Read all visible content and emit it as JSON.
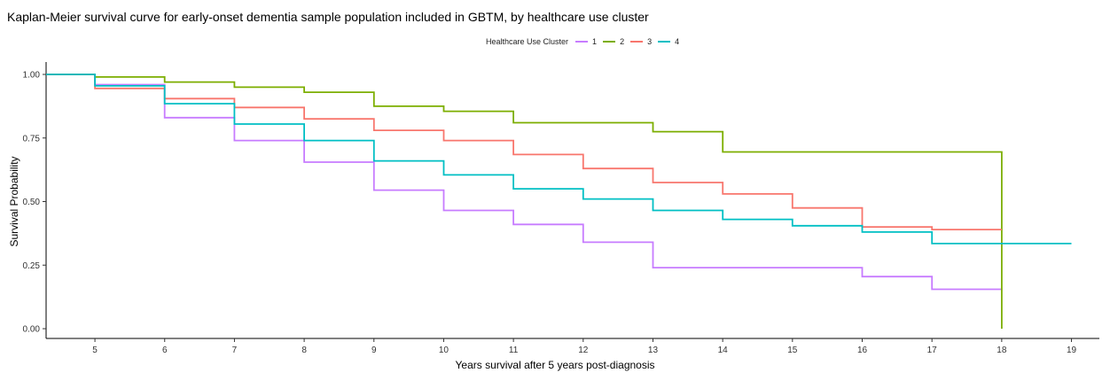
{
  "chart_data": {
    "type": "line",
    "step": true,
    "title": "Kaplan-Meier survival curve for early-onset dementia sample population included in GBTM, by healthcare use cluster",
    "xlabel": "Years survival after 5 years post-diagnosis",
    "ylabel": "Survival Probability",
    "xlim": [
      4.3,
      19.4
    ],
    "ylim": [
      0,
      1
    ],
    "xticks": [
      5,
      6,
      7,
      8,
      9,
      10,
      11,
      12,
      13,
      14,
      15,
      16,
      17,
      18,
      19
    ],
    "yticks": [
      0,
      0.25,
      0.5,
      0.75,
      1.0
    ],
    "ytick_labels": [
      "0.00",
      "0.25",
      "0.50",
      "0.75",
      "1.00"
    ],
    "grid": false,
    "legend": {
      "title": "Healthcare Use Cluster",
      "position": "top",
      "entries": [
        "1",
        "2",
        "3",
        "4"
      ]
    },
    "series": [
      {
        "name": "1",
        "color": "#C77CFF",
        "x": [
          4.3,
          5,
          6,
          7,
          8,
          9,
          10,
          11,
          12,
          13,
          16,
          17,
          18
        ],
        "y": [
          1.0,
          0.96,
          0.83,
          0.74,
          0.655,
          0.545,
          0.465,
          0.41,
          0.34,
          0.24,
          0.205,
          0.155,
          0.155
        ]
      },
      {
        "name": "2",
        "color": "#7CAE00",
        "x": [
          4.3,
          5,
          6,
          7,
          8,
          9,
          10,
          11,
          13,
          14,
          18,
          18
        ],
        "y": [
          1.0,
          0.99,
          0.97,
          0.95,
          0.93,
          0.875,
          0.855,
          0.81,
          0.775,
          0.695,
          0.695,
          0.0
        ]
      },
      {
        "name": "3",
        "color": "#F8766D",
        "x": [
          4.3,
          5,
          6,
          7,
          8,
          9,
          10,
          11,
          12,
          13,
          14,
          15,
          16,
          17,
          18
        ],
        "y": [
          1.0,
          0.945,
          0.905,
          0.87,
          0.825,
          0.78,
          0.74,
          0.685,
          0.63,
          0.575,
          0.53,
          0.475,
          0.4,
          0.39,
          0.39
        ]
      },
      {
        "name": "4",
        "color": "#00BFC4",
        "x": [
          4.3,
          5,
          6,
          7,
          8,
          9,
          10,
          11,
          12,
          13,
          14,
          15,
          16,
          17,
          19
        ],
        "y": [
          1.0,
          0.955,
          0.885,
          0.805,
          0.74,
          0.66,
          0.605,
          0.55,
          0.51,
          0.465,
          0.43,
          0.405,
          0.38,
          0.335,
          0.335
        ]
      }
    ]
  }
}
